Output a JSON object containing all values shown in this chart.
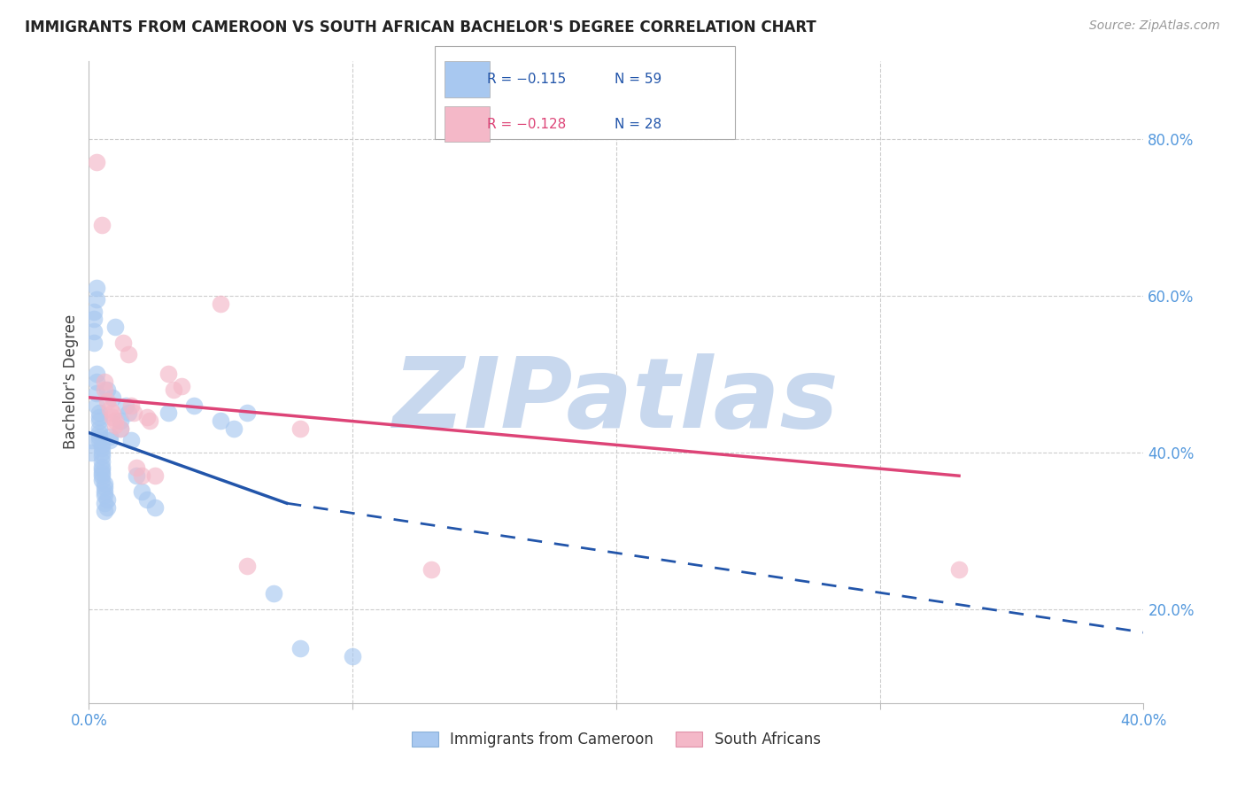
{
  "title": "IMMIGRANTS FROM CAMEROON VS SOUTH AFRICAN BACHELOR'S DEGREE CORRELATION CHART",
  "source": "Source: ZipAtlas.com",
  "ylabel": "Bachelor's Degree",
  "y_ticks": [
    0.2,
    0.4,
    0.6,
    0.8
  ],
  "y_tick_labels": [
    "20.0%",
    "40.0%",
    "60.0%",
    "80.0%"
  ],
  "xlim": [
    0.0,
    0.4
  ],
  "ylim": [
    0.08,
    0.9
  ],
  "legend_entries": [
    {
      "r_text": "R = −0.115",
      "n_text": "N = 59",
      "color": "#a8c8f0"
    },
    {
      "r_text": "R = −0.128",
      "n_text": "N = 28",
      "color": "#f4b8c8"
    }
  ],
  "watermark": "ZIPatlas",
  "watermark_color": "#c8d8ee",
  "blue_color": "#a8c8f0",
  "pink_color": "#f4b8c8",
  "blue_line_color": "#2255aa",
  "pink_line_color": "#dd4477",
  "axis_tick_color": "#5599dd",
  "grid_color": "#cccccc",
  "blue_scatter": [
    [
      0.001,
      0.415
    ],
    [
      0.001,
      0.4
    ],
    [
      0.002,
      0.58
    ],
    [
      0.002,
      0.57
    ],
    [
      0.002,
      0.555
    ],
    [
      0.002,
      0.54
    ],
    [
      0.003,
      0.61
    ],
    [
      0.003,
      0.595
    ],
    [
      0.003,
      0.5
    ],
    [
      0.003,
      0.49
    ],
    [
      0.003,
      0.475
    ],
    [
      0.003,
      0.46
    ],
    [
      0.004,
      0.45
    ],
    [
      0.004,
      0.445
    ],
    [
      0.004,
      0.44
    ],
    [
      0.004,
      0.43
    ],
    [
      0.004,
      0.425
    ],
    [
      0.004,
      0.42
    ],
    [
      0.004,
      0.415
    ],
    [
      0.005,
      0.41
    ],
    [
      0.005,
      0.405
    ],
    [
      0.005,
      0.4
    ],
    [
      0.005,
      0.395
    ],
    [
      0.005,
      0.388
    ],
    [
      0.005,
      0.382
    ],
    [
      0.005,
      0.378
    ],
    [
      0.005,
      0.374
    ],
    [
      0.005,
      0.37
    ],
    [
      0.005,
      0.365
    ],
    [
      0.006,
      0.36
    ],
    [
      0.006,
      0.355
    ],
    [
      0.006,
      0.35
    ],
    [
      0.006,
      0.345
    ],
    [
      0.006,
      0.335
    ],
    [
      0.006,
      0.325
    ],
    [
      0.007,
      0.34
    ],
    [
      0.007,
      0.33
    ],
    [
      0.007,
      0.48
    ],
    [
      0.008,
      0.42
    ],
    [
      0.008,
      0.415
    ],
    [
      0.009,
      0.47
    ],
    [
      0.01,
      0.56
    ],
    [
      0.012,
      0.44
    ],
    [
      0.012,
      0.43
    ],
    [
      0.014,
      0.46
    ],
    [
      0.015,
      0.45
    ],
    [
      0.016,
      0.415
    ],
    [
      0.018,
      0.37
    ],
    [
      0.02,
      0.35
    ],
    [
      0.022,
      0.34
    ],
    [
      0.025,
      0.33
    ],
    [
      0.03,
      0.45
    ],
    [
      0.04,
      0.46
    ],
    [
      0.05,
      0.44
    ],
    [
      0.055,
      0.43
    ],
    [
      0.06,
      0.45
    ],
    [
      0.07,
      0.22
    ],
    [
      0.08,
      0.15
    ],
    [
      0.1,
      0.14
    ]
  ],
  "pink_scatter": [
    [
      0.003,
      0.77
    ],
    [
      0.005,
      0.69
    ],
    [
      0.006,
      0.49
    ],
    [
      0.006,
      0.48
    ],
    [
      0.007,
      0.465
    ],
    [
      0.008,
      0.455
    ],
    [
      0.009,
      0.45
    ],
    [
      0.009,
      0.445
    ],
    [
      0.01,
      0.44
    ],
    [
      0.01,
      0.435
    ],
    [
      0.012,
      0.43
    ],
    [
      0.013,
      0.54
    ],
    [
      0.015,
      0.525
    ],
    [
      0.016,
      0.46
    ],
    [
      0.017,
      0.45
    ],
    [
      0.018,
      0.38
    ],
    [
      0.02,
      0.37
    ],
    [
      0.022,
      0.445
    ],
    [
      0.023,
      0.44
    ],
    [
      0.025,
      0.37
    ],
    [
      0.03,
      0.5
    ],
    [
      0.032,
      0.48
    ],
    [
      0.035,
      0.485
    ],
    [
      0.05,
      0.59
    ],
    [
      0.06,
      0.255
    ],
    [
      0.08,
      0.43
    ],
    [
      0.13,
      0.25
    ],
    [
      0.33,
      0.25
    ]
  ],
  "blue_line_solid": {
    "x0": 0.0,
    "y0": 0.425,
    "x1": 0.075,
    "y1": 0.335
  },
  "blue_line_dash": {
    "x0": 0.075,
    "y0": 0.335,
    "x1": 0.4,
    "y1": 0.17
  },
  "pink_line_solid": {
    "x0": 0.0,
    "y0": 0.47,
    "x1": 0.33,
    "y1": 0.37
  }
}
